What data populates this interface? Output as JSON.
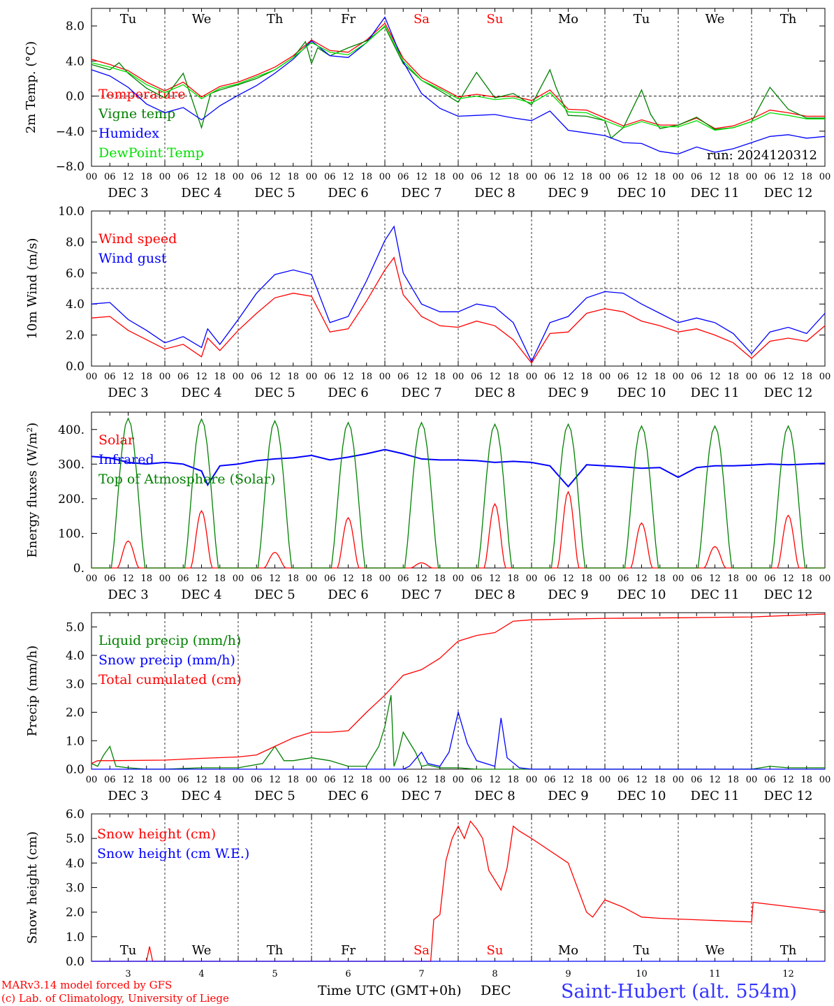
{
  "run_label": "run: 2024120312",
  "footer": {
    "credit_line1": "MARv3.14 model forced by GFS",
    "credit_line2": "(c) Lab. of Climatology, University of Liege",
    "xlabel": "Time UTC (GMT+0h)",
    "month_label": "DEC",
    "station": "Saint-Hubert (alt. 554m)"
  },
  "colors": {
    "red": "#ff0000",
    "green": "#008000",
    "blue": "#0000ff",
    "lime": "#00e000",
    "weekend": "#ff0000",
    "text": "#000000"
  },
  "days": {
    "weekdays": [
      "Tu",
      "We",
      "Th",
      "Fr",
      "Sa",
      "Su",
      "Mo",
      "Tu",
      "We",
      "Th"
    ],
    "weekend_flags": [
      false,
      false,
      false,
      false,
      true,
      true,
      false,
      false,
      false,
      false
    ],
    "date_labels": [
      "DEC  3",
      "DEC  4",
      "DEC  5",
      "DEC  6",
      "DEC  7",
      "DEC  8",
      "DEC  9",
      "DEC 10",
      "DEC 11",
      "DEC 12"
    ],
    "bottom_numbers": [
      "3",
      "4",
      "5",
      "6",
      "7",
      "8",
      "9",
      "10",
      "11",
      "12"
    ],
    "hour_ticks": [
      "00",
      "06",
      "12",
      "18"
    ],
    "last_tick": "00"
  },
  "chart_data": [
    {
      "type": "line",
      "ylabel": "2m Temp. (°C)",
      "ylim": [
        -8,
        10
      ],
      "yticks": [
        "8.0",
        "4.0",
        "0.0",
        "−4.0",
        "−8.0"
      ],
      "ytick_values": [
        8,
        4,
        0,
        -4,
        -8
      ],
      "ref_line": 0,
      "x_unit": "hours since DEC 3 00 UTC",
      "xlim": [
        0,
        240
      ],
      "series": [
        {
          "name": "Temperature",
          "color": "#ff0000",
          "x": [
            0,
            6,
            12,
            18,
            24,
            30,
            36,
            42,
            48,
            54,
            60,
            66,
            72,
            78,
            84,
            90,
            96,
            102,
            108,
            114,
            120,
            126,
            132,
            138,
            144,
            150,
            156,
            162,
            168,
            174,
            180,
            186,
            192,
            198,
            204,
            210,
            216,
            222,
            228,
            234,
            240
          ],
          "y": [
            4.2,
            3.6,
            2.9,
            1.6,
            0.6,
            1.6,
            -0.1,
            1.1,
            1.6,
            2.4,
            3.3,
            4.6,
            6.4,
            5.2,
            5.0,
            6.4,
            8.3,
            4.3,
            2.1,
            1.0,
            -0.1,
            0.2,
            -0.1,
            0.0,
            -0.5,
            0.7,
            -1.5,
            -1.6,
            -2.5,
            -3.4,
            -2.7,
            -3.3,
            -3.3,
            -2.5,
            -3.7,
            -3.4,
            -2.6,
            -1.6,
            -1.9,
            -2.3,
            -2.3
          ]
        },
        {
          "name": "Vigne temp",
          "color": "#008000",
          "x": [
            0,
            6,
            9,
            12,
            18,
            24,
            30,
            36,
            39,
            42,
            48,
            54,
            60,
            66,
            70,
            72,
            74,
            78,
            84,
            90,
            96,
            102,
            108,
            114,
            120,
            126,
            132,
            138,
            144,
            150,
            152,
            156,
            162,
            168,
            170,
            174,
            180,
            183,
            186,
            192,
            198,
            204,
            210,
            216,
            222,
            228,
            234,
            240
          ],
          "y": [
            3.6,
            3.0,
            3.8,
            2.6,
            0.9,
            -0.2,
            2.6,
            -3.6,
            0.3,
            0.7,
            1.3,
            2.0,
            3.0,
            4.4,
            6.2,
            3.7,
            5.5,
            4.6,
            5.5,
            6.3,
            7.9,
            3.7,
            1.8,
            0.6,
            -0.7,
            2.7,
            -0.2,
            0.3,
            -1.0,
            3.0,
            1.0,
            -2.2,
            -2.3,
            -2.8,
            -4.8,
            -3.6,
            0.7,
            -2.1,
            -3.7,
            -3.3,
            -2.4,
            -3.8,
            -3.6,
            -2.9,
            1.0,
            -1.5,
            -2.5,
            -2.5
          ]
        },
        {
          "name": "Humidex",
          "color": "#0000ff",
          "x": [
            0,
            6,
            12,
            18,
            24,
            30,
            36,
            42,
            48,
            54,
            60,
            66,
            72,
            78,
            84,
            90,
            96,
            102,
            108,
            114,
            120,
            126,
            132,
            138,
            144,
            150,
            156,
            162,
            168,
            174,
            180,
            186,
            192,
            198,
            204,
            210,
            216,
            222,
            228,
            234,
            240
          ],
          "y": [
            3.0,
            2.3,
            1.0,
            -0.9,
            -1.9,
            -1.3,
            -2.7,
            -1.1,
            0.1,
            1.2,
            2.6,
            4.2,
            6.3,
            4.6,
            4.4,
            6.1,
            9.0,
            3.9,
            0.3,
            -1.4,
            -2.3,
            -2.2,
            -2.1,
            -2.5,
            -2.8,
            -1.7,
            -3.9,
            -4.2,
            -4.5,
            -5.3,
            -5.4,
            -6.3,
            -6.6,
            -5.8,
            -6.4,
            -6.0,
            -5.3,
            -4.6,
            -4.4,
            -4.8,
            -4.6
          ]
        },
        {
          "name": "DewPoint Temp",
          "color": "#00e000",
          "x": [
            0,
            6,
            12,
            18,
            24,
            30,
            36,
            42,
            48,
            54,
            60,
            66,
            72,
            78,
            84,
            90,
            96,
            102,
            108,
            114,
            120,
            126,
            132,
            138,
            144,
            150,
            156,
            162,
            168,
            174,
            180,
            186,
            192,
            198,
            204,
            210,
            216,
            222,
            228,
            234,
            240
          ],
          "y": [
            3.8,
            3.3,
            2.7,
            1.3,
            0.4,
            1.3,
            -0.3,
            0.9,
            1.4,
            2.2,
            3.0,
            4.4,
            6.1,
            5.0,
            4.7,
            6.1,
            8.0,
            4.0,
            1.8,
            0.8,
            -0.3,
            0.0,
            -0.4,
            -0.2,
            -0.8,
            0.4,
            -1.8,
            -1.9,
            -2.8,
            -3.6,
            -2.9,
            -3.5,
            -3.5,
            -2.8,
            -3.9,
            -3.6,
            -2.9,
            -1.9,
            -2.2,
            -2.6,
            -2.6
          ]
        }
      ]
    },
    {
      "type": "line",
      "ylabel": "10m Wind (m/s)",
      "ylim": [
        0,
        10
      ],
      "yticks": [
        "10.0",
        "8.0",
        "6.0",
        "4.0",
        "2.0",
        "0.0"
      ],
      "ytick_values": [
        10,
        8,
        6,
        4,
        2,
        0
      ],
      "ref_line": 5,
      "series": [
        {
          "name": "Wind speed",
          "color": "#ff0000",
          "x": [
            0,
            6,
            12,
            18,
            24,
            30,
            36,
            38,
            42,
            48,
            54,
            60,
            66,
            72,
            78,
            84,
            90,
            96,
            99,
            102,
            108,
            114,
            120,
            126,
            132,
            138,
            144,
            150,
            156,
            162,
            168,
            174,
            180,
            186,
            192,
            198,
            204,
            210,
            216,
            222,
            228,
            234,
            240
          ],
          "y": [
            3.1,
            3.2,
            2.3,
            1.7,
            1.1,
            1.4,
            0.6,
            1.8,
            1.0,
            2.3,
            3.4,
            4.4,
            4.7,
            4.5,
            2.2,
            2.4,
            4.2,
            6.2,
            7.0,
            4.6,
            3.2,
            2.6,
            2.5,
            2.9,
            2.6,
            1.7,
            0.2,
            2.1,
            2.2,
            3.4,
            3.7,
            3.5,
            2.9,
            2.6,
            2.2,
            2.4,
            2.0,
            1.5,
            0.5,
            1.6,
            1.8,
            1.6,
            2.6
          ]
        },
        {
          "name": "Wind gust",
          "color": "#0000ff",
          "x": [
            0,
            6,
            12,
            18,
            24,
            30,
            36,
            38,
            42,
            48,
            54,
            60,
            66,
            72,
            78,
            84,
            90,
            96,
            99,
            102,
            108,
            114,
            120,
            126,
            132,
            138,
            144,
            150,
            156,
            162,
            168,
            174,
            180,
            186,
            192,
            198,
            204,
            210,
            216,
            222,
            228,
            234,
            240
          ],
          "y": [
            4.0,
            4.1,
            3.0,
            2.3,
            1.5,
            1.9,
            1.2,
            2.4,
            1.4,
            3.0,
            4.7,
            5.9,
            6.2,
            5.9,
            2.8,
            3.2,
            5.5,
            8.1,
            9.0,
            6.0,
            4.0,
            3.5,
            3.5,
            4.0,
            3.8,
            2.8,
            0.3,
            2.8,
            3.2,
            4.4,
            4.8,
            4.7,
            4.0,
            3.4,
            2.8,
            3.1,
            2.8,
            2.1,
            0.8,
            2.2,
            2.5,
            2.1,
            3.4
          ]
        }
      ]
    },
    {
      "type": "line",
      "ylabel": "Energy fluxes (W/m²)",
      "ylim": [
        0,
        450
      ],
      "yticks": [
        "400.",
        "300.",
        "200.",
        "100.",
        "0."
      ],
      "ytick_values": [
        400,
        300,
        200,
        100,
        0
      ],
      "series": [
        {
          "name": "Solar",
          "color": "#ff0000",
          "daily_peak": [
            78,
            165,
            45,
            145,
            15,
            185,
            220,
            130,
            62,
            152
          ]
        },
        {
          "name": "Infrared",
          "color": "#0000ff",
          "x": [
            0,
            6,
            12,
            18,
            24,
            30,
            36,
            38,
            42,
            48,
            54,
            60,
            66,
            72,
            78,
            84,
            90,
            96,
            102,
            108,
            114,
            120,
            126,
            132,
            138,
            144,
            150,
            156,
            162,
            168,
            174,
            180,
            186,
            192,
            198,
            204,
            210,
            216,
            222,
            228,
            234,
            240
          ],
          "y": [
            322,
            318,
            305,
            300,
            305,
            300,
            280,
            240,
            295,
            300,
            310,
            315,
            318,
            325,
            312,
            320,
            330,
            342,
            330,
            315,
            312,
            312,
            310,
            305,
            308,
            305,
            295,
            235,
            298,
            295,
            292,
            288,
            290,
            262,
            290,
            295,
            295,
            297,
            300,
            298,
            300,
            302
          ]
        },
        {
          "name": "Top of Atmosphere (Solar)",
          "color": "#008000",
          "daily_peak": [
            432,
            430,
            425,
            420,
            420,
            415,
            415,
            410,
            410,
            410
          ]
        }
      ]
    },
    {
      "type": "line",
      "ylabel": "Precip (mm/h)",
      "ylim": [
        0,
        5.5
      ],
      "yticks": [
        "5.0",
        "4.0",
        "3.0",
        "2.0",
        "1.0",
        "0.0"
      ],
      "ytick_values": [
        5,
        4,
        3,
        2,
        1,
        0
      ],
      "series": [
        {
          "name": "Liquid precip (mm/h)",
          "color": "#008000",
          "x": [
            0,
            2,
            4,
            6,
            8,
            12,
            18,
            24,
            36,
            48,
            56,
            60,
            63,
            66,
            72,
            78,
            84,
            90,
            94,
            96,
            98,
            99,
            100,
            102,
            106,
            108,
            110,
            114,
            120,
            126,
            132,
            144,
            168,
            192,
            216,
            222,
            228,
            240
          ],
          "y": [
            0.2,
            0.1,
            0.5,
            0.8,
            0.1,
            0.05,
            0.0,
            0.0,
            0.05,
            0.05,
            0.2,
            0.8,
            0.3,
            0.3,
            0.4,
            0.3,
            0.1,
            0.1,
            0.8,
            1.5,
            2.6,
            0.1,
            0.4,
            1.3,
            0.6,
            0.1,
            0.15,
            0.05,
            0.05,
            0.0,
            0.0,
            0.0,
            0.0,
            0.0,
            0.0,
            0.1,
            0.05,
            0.05
          ]
        },
        {
          "name": "Snow precip (mm/h)",
          "color": "#0000ff",
          "x": [
            0,
            24,
            48,
            72,
            96,
            102,
            104,
            108,
            110,
            114,
            117,
            120,
            123,
            126,
            132,
            134,
            136,
            140,
            144,
            168,
            192,
            216,
            240
          ],
          "y": [
            0.0,
            0.0,
            0.0,
            0.0,
            0.0,
            0.0,
            0.1,
            0.6,
            0.2,
            0.1,
            0.6,
            2.0,
            0.9,
            0.3,
            0.1,
            1.8,
            0.4,
            0.05,
            0.0,
            0.0,
            0.0,
            0.0,
            0.0
          ]
        },
        {
          "name": "Total cumulated (cm)",
          "color": "#ff0000",
          "x": [
            0,
            2,
            6,
            24,
            36,
            48,
            54,
            60,
            66,
            72,
            78,
            84,
            90,
            96,
            102,
            108,
            114,
            120,
            126,
            132,
            138,
            144,
            168,
            192,
            216,
            240
          ],
          "y": [
            0.2,
            0.3,
            0.3,
            0.32,
            0.38,
            0.43,
            0.5,
            0.8,
            1.1,
            1.3,
            1.3,
            1.35,
            2.0,
            2.6,
            3.3,
            3.5,
            3.9,
            4.5,
            4.7,
            4.8,
            5.2,
            5.25,
            5.3,
            5.32,
            5.35,
            5.45
          ]
        }
      ]
    },
    {
      "type": "line",
      "ylabel": "Snow height (cm)",
      "ylim": [
        0,
        6
      ],
      "yticks": [
        "6.0",
        "5.0",
        "4.0",
        "3.0",
        "2.0",
        "1.0",
        "0.0"
      ],
      "ytick_values": [
        6,
        5,
        4,
        3,
        2,
        1,
        0
      ],
      "series": [
        {
          "name": "Snow height (cm)",
          "color": "#ff0000",
          "x": [
            0,
            18,
            19,
            20,
            22,
            48,
            96,
            111,
            112,
            114,
            116,
            118,
            120,
            122,
            124,
            126,
            128,
            130,
            134,
            136,
            138,
            140,
            144,
            156,
            162,
            164,
            168,
            174,
            180,
            186,
            216,
            216.5,
            240
          ],
          "y": [
            0,
            0,
            0.6,
            0,
            0,
            0,
            0,
            0,
            1.7,
            1.9,
            4.1,
            5.0,
            5.5,
            5.0,
            5.7,
            5.4,
            5.0,
            3.7,
            2.9,
            3.8,
            5.5,
            5.3,
            5.0,
            4.0,
            2.0,
            1.8,
            2.5,
            2.2,
            1.8,
            1.75,
            1.6,
            2.4,
            2.05
          ]
        },
        {
          "name": "Snow height (cm W.E.)",
          "color": "#0000ff",
          "x": [
            0,
            240
          ],
          "y": [
            0,
            0
          ]
        }
      ]
    }
  ]
}
